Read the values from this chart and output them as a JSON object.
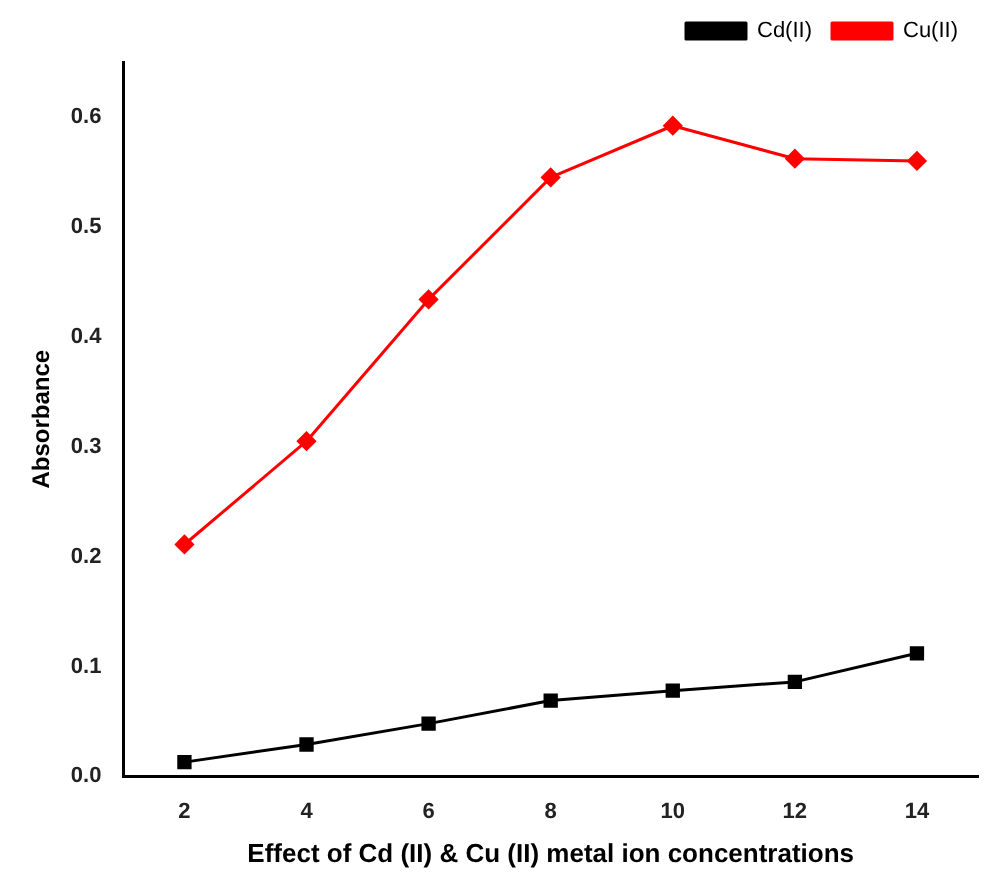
{
  "chart_data": {
    "type": "line",
    "xlabel": "Effect of Cd (II) & Cu (II) metal ion concentrations",
    "ylabel": "Absorbance",
    "x": [
      2,
      4,
      6,
      8,
      10,
      12,
      14
    ],
    "series": [
      {
        "name": "Cd(II)",
        "color": "#000000",
        "marker": "square",
        "values": [
          0.013,
          0.029,
          0.048,
          0.069,
          0.078,
          0.086,
          0.112
        ]
      },
      {
        "name": "Cu(II)",
        "color": "#ff0000",
        "marker": "diamond",
        "values": [
          0.211,
          0.305,
          0.434,
          0.545,
          0.592,
          0.562,
          0.56
        ]
      }
    ],
    "xlim": [
      1,
      15
    ],
    "xticks": [
      2,
      4,
      6,
      8,
      10,
      12,
      14
    ],
    "ylim": [
      0,
      0.65
    ],
    "yticks": [
      {
        "value": 0,
        "label": "0.0"
      },
      {
        "value": 0.1,
        "label": "0.1"
      },
      {
        "value": 0.2,
        "label": "0.2"
      },
      {
        "value": 0.3,
        "label": "0.3"
      },
      {
        "value": 0.4,
        "label": "0.4"
      },
      {
        "value": 0.5,
        "label": "0.5"
      },
      {
        "value": 0.6,
        "label": "0.6"
      }
    ],
    "grid": false,
    "legend": "top right",
    "line_style": "solid"
  }
}
